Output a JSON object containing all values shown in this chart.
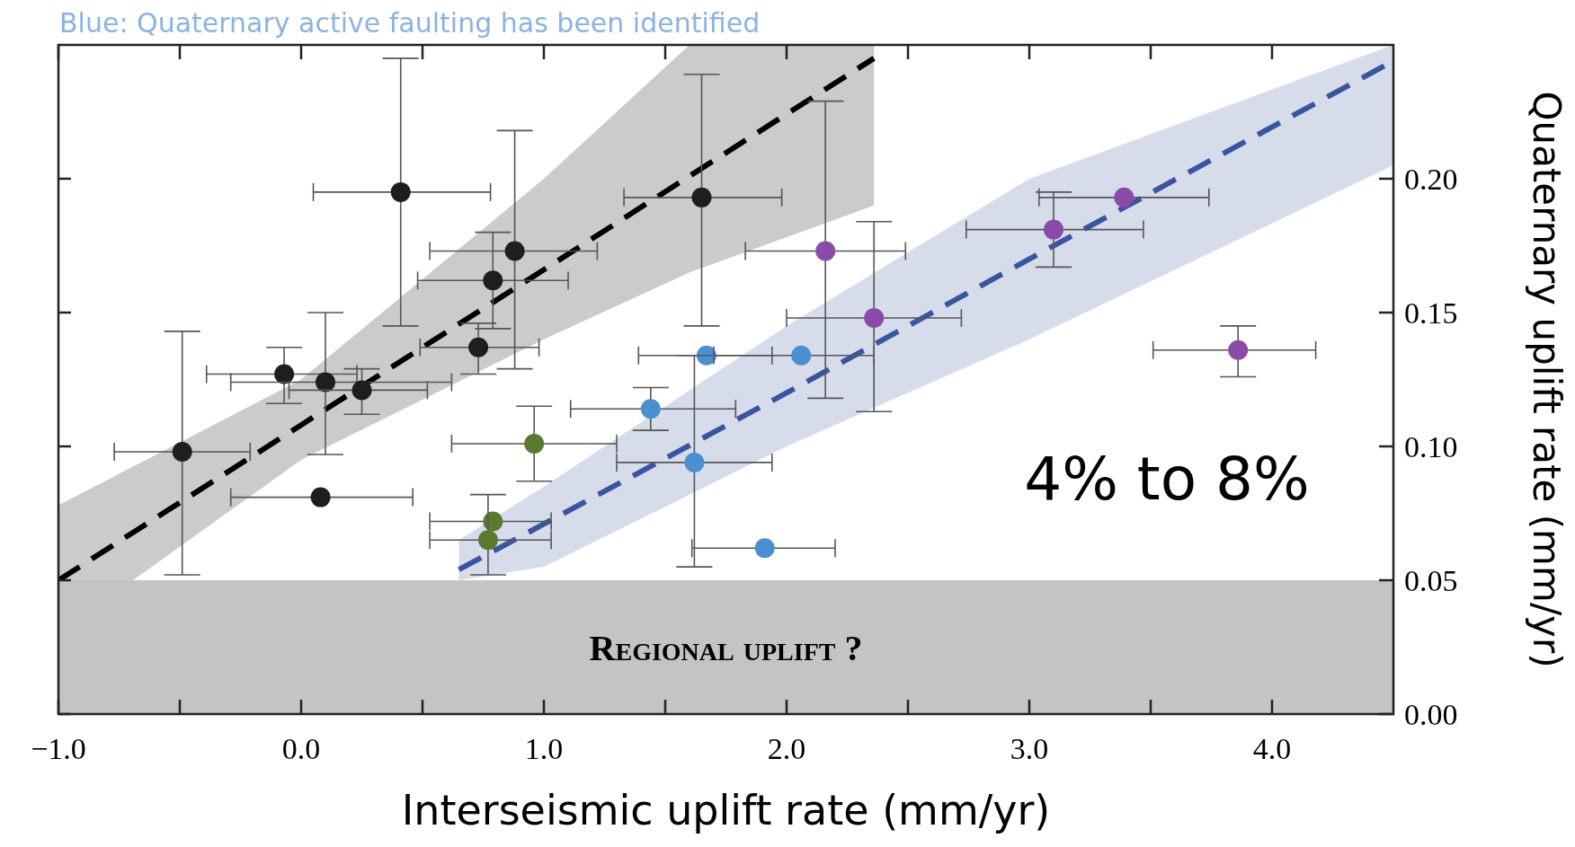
{
  "chart_data": {
    "type": "scatter",
    "title": "Blue: Quaternary active faulting has been identified",
    "xlabel": "Interseismic uplift rate (mm/yr)",
    "ylabel": "Quaternary uplift rate (mm/yr)",
    "xlim": [
      -1,
      4.5
    ],
    "ylim": [
      0,
      0.25
    ],
    "xticks": [
      {
        "value": -1,
        "label": "−1.0"
      },
      {
        "value": -0.5,
        "label": null
      },
      {
        "value": 0,
        "label": "0.0"
      },
      {
        "value": 0.5,
        "label": null
      },
      {
        "value": 1,
        "label": "1.0"
      },
      {
        "value": 1.5,
        "label": null
      },
      {
        "value": 2,
        "label": "2.0"
      },
      {
        "value": 2.5,
        "label": null
      },
      {
        "value": 3,
        "label": "3.0"
      },
      {
        "value": 3.5,
        "label": null
      },
      {
        "value": 4,
        "label": "4.0"
      }
    ],
    "yticks": [
      {
        "value": 0,
        "label": "0.00"
      },
      0.05,
      {
        "value": 0.1,
        "label": "0.10"
      },
      0.15,
      {
        "value": 0.2,
        "label": "0.20"
      }
    ],
    "grid": false,
    "marker": "circle",
    "bands": [
      {
        "axis": "y",
        "from": 0,
        "to": 0.05,
        "label": "Regional uplift ?",
        "color": "#c4c4c4"
      }
    ],
    "annotations": [
      "4% to 8%"
    ],
    "series": [
      {
        "type": "line",
        "marker": "none",
        "color": "#000000",
        "line_style": "dashed",
        "x": [
          -1,
          0,
          1,
          1.6,
          2.36
        ],
        "values": [
          0.05,
          0.108,
          0.166,
          0.201,
          0.245
        ],
        "lower": [
          0.03,
          0.095,
          0.14,
          0.165,
          0.19
        ],
        "upper": [
          0.078,
          0.125,
          0.2,
          0.25,
          0.25
        ]
      },
      {
        "type": "line",
        "marker": "none",
        "color": "#3a55a0",
        "line_style": "dashed",
        "x": [
          0.65,
          1,
          2,
          3,
          4.5
        ],
        "values": [
          0.054,
          0.071,
          0.12,
          0.17,
          0.244
        ],
        "lower": [
          0.05,
          0.055,
          0.1,
          0.14,
          0.205
        ],
        "upper": [
          0.065,
          0.085,
          0.145,
          0.2,
          0.25
        ]
      },
      {
        "color": "#1e1e1e",
        "x": [
          -0.49,
          -0.07,
          0.1,
          0.25,
          0.08,
          0.41,
          0.73,
          0.79,
          0.88,
          1.65
        ],
        "values": [
          0.098,
          0.127,
          0.124,
          0.121,
          0.081,
          0.195,
          0.137,
          0.162,
          0.173,
          0.193
        ],
        "xerrors": [
          [
            -0.77,
            -0.21
          ],
          [
            -0.39,
            0.23
          ],
          [
            -0.29,
            0.62
          ],
          [
            -0.05,
            0.52
          ],
          [
            -0.29,
            0.46
          ],
          [
            0.05,
            0.78
          ],
          [
            0.49,
            0.98
          ],
          [
            0.48,
            1.1
          ],
          [
            0.53,
            1.22
          ],
          [
            1.33,
            1.98
          ]
        ],
        "errors": [
          [
            0.052,
            0.143
          ],
          [
            0.116,
            0.137
          ],
          [
            0.097,
            0.15
          ],
          [
            0.112,
            0.129
          ],
          null,
          [
            0.145,
            0.245
          ],
          [
            0.127,
            0.146
          ],
          [
            0.144,
            0.18
          ],
          [
            0.129,
            0.218
          ],
          [
            0.145,
            0.239
          ]
        ]
      },
      {
        "color": "#5a7a30",
        "x": [
          0.96,
          0.79,
          0.77
        ],
        "values": [
          0.101,
          0.072,
          0.065
        ],
        "xerrors": [
          [
            0.62,
            1.3
          ],
          [
            0.53,
            1.03
          ],
          [
            0.53,
            1.03
          ]
        ],
        "errors": [
          [
            0.087,
            0.115
          ],
          null,
          [
            0.052,
            0.082
          ]
        ]
      },
      {
        "color": "#4a90d0",
        "x": [
          1.67,
          2.06,
          1.44,
          1.62,
          1.91
        ],
        "values": [
          0.134,
          0.134,
          0.114,
          0.094,
          0.062
        ],
        "xerrors": [
          [
            1.39,
            1.94
          ],
          [
            1.7,
            2.36
          ],
          [
            1.11,
            1.79
          ],
          [
            1.3,
            1.94
          ],
          [
            1.61,
            2.2
          ]
        ],
        "errors": [
          null,
          null,
          [
            0.106,
            0.122
          ],
          [
            0.055,
            0.134
          ],
          null
        ]
      },
      {
        "color": "#8a4aa8",
        "x": [
          2.16,
          2.36,
          3.1,
          3.39,
          3.86
        ],
        "values": [
          0.173,
          0.148,
          0.181,
          0.193,
          0.136
        ],
        "xerrors": [
          [
            1.83,
            2.49
          ],
          [
            2.0,
            2.72
          ],
          [
            2.74,
            3.47
          ],
          [
            3.04,
            3.74
          ],
          [
            3.51,
            4.18
          ]
        ],
        "errors": [
          [
            0.118,
            0.229
          ],
          [
            0.113,
            0.184
          ],
          [
            0.167,
            0.195
          ],
          null,
          [
            0.126,
            0.145
          ]
        ]
      }
    ]
  }
}
